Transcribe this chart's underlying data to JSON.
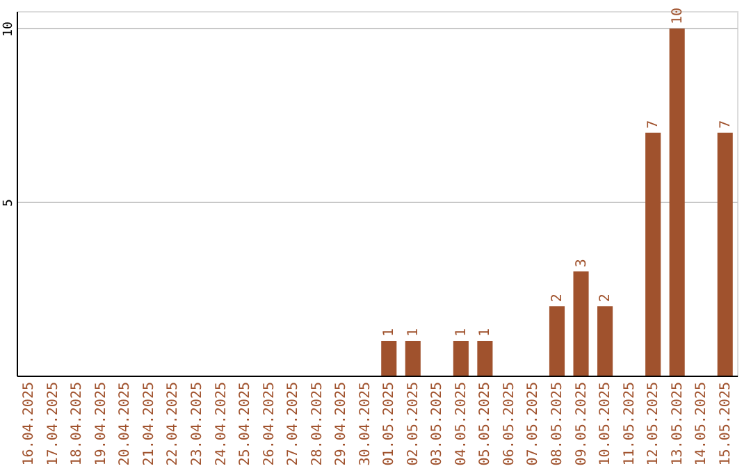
{
  "chart_data": {
    "type": "bar",
    "categories": [
      "16.04.2025",
      "17.04.2025",
      "18.04.2025",
      "19.04.2025",
      "20.04.2025",
      "21.04.2025",
      "22.04.2025",
      "23.04.2025",
      "24.04.2025",
      "25.04.2025",
      "26.04.2025",
      "27.04.2025",
      "28.04.2025",
      "29.04.2025",
      "30.04.2025",
      "01.05.2025",
      "02.05.2025",
      "03.05.2025",
      "04.05.2025",
      "05.05.2025",
      "06.05.2025",
      "07.05.2025",
      "08.05.2025",
      "09.05.2025",
      "10.05.2025",
      "11.05.2025",
      "12.05.2025",
      "13.05.2025",
      "14.05.2025",
      "15.05.2025"
    ],
    "values": [
      0,
      0,
      0,
      0,
      0,
      0,
      0,
      0,
      0,
      0,
      0,
      0,
      0,
      0,
      0,
      1,
      1,
      0,
      1,
      1,
      0,
      0,
      2,
      3,
      2,
      0,
      7,
      10,
      0,
      7
    ],
    "value_labels": [
      null,
      null,
      null,
      null,
      null,
      null,
      null,
      null,
      null,
      null,
      null,
      null,
      null,
      null,
      null,
      "1",
      "1",
      null,
      "1",
      "1",
      null,
      null,
      "2",
      "3",
      "2",
      null,
      "7",
      "10",
      null,
      "7"
    ],
    "color": "#a0522d",
    "ylim": [
      0,
      10.5
    ],
    "yticks": [
      5,
      10
    ],
    "grid": "y"
  }
}
